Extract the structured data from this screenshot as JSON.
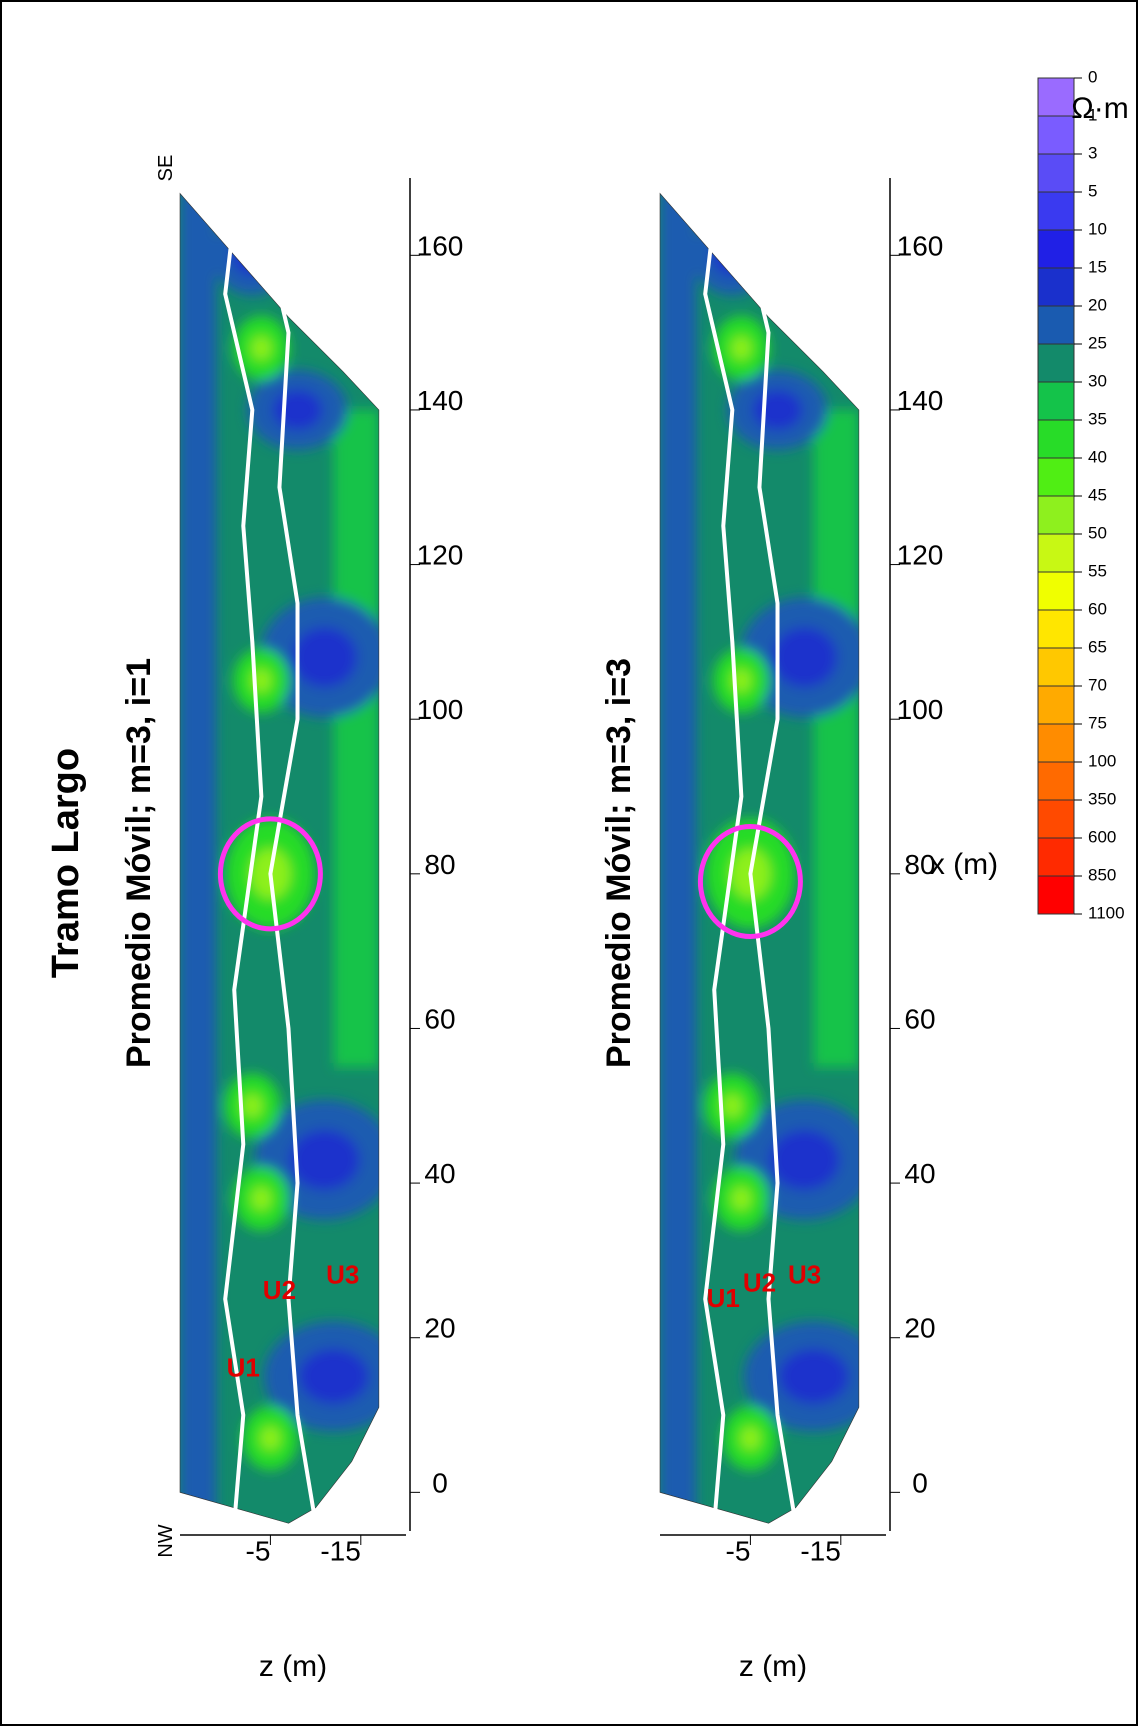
{
  "figure": {
    "title": "Tramo Largo",
    "orientation_left": "NW",
    "orientation_right": "SE"
  },
  "colorbar": {
    "unit": "Ω·m",
    "levels": [
      "0",
      "1",
      "3",
      "5",
      "10",
      "15",
      "20",
      "25",
      "30",
      "35",
      "40",
      "45",
      "50",
      "55",
      "60",
      "65",
      "70",
      "75",
      "100",
      "350",
      "600",
      "850",
      "1100"
    ],
    "colors": [
      "#9a6bff",
      "#7a5cff",
      "#5a4cf6",
      "#3a3af0",
      "#2020e6",
      "#1a30cc",
      "#1a5bb0",
      "#138a6a",
      "#14c34a",
      "#28dc28",
      "#50ee14",
      "#8ef01e",
      "#c8f814",
      "#f0ff00",
      "#ffe600",
      "#ffc800",
      "#ffaa00",
      "#ff8c00",
      "#ff6a00",
      "#ff4a00",
      "#ff2a00",
      "#ff0000"
    ]
  },
  "chart_data": [
    {
      "type": "heatmap",
      "title": "Promedio Móvil; m=3, i=1",
      "xlabel": "x (m)",
      "ylabel": "z (m)",
      "xlim": [
        -5,
        170
      ],
      "ylim": [
        -20,
        5
      ],
      "xticks": [
        "0",
        "20",
        "40",
        "60",
        "80",
        "100",
        "120",
        "140",
        "160"
      ],
      "yticks": [
        "-5",
        "-15"
      ],
      "units": [
        {
          "label": "U1",
          "x": 15,
          "z": -2
        },
        {
          "label": "U2",
          "x": 25,
          "z": -6
        },
        {
          "label": "U3",
          "x": 27,
          "z": -13
        }
      ],
      "anomaly": {
        "center_x": 80,
        "center_z": -5
      }
    },
    {
      "type": "heatmap",
      "title": "Promedio Móvil; m=3, i=3",
      "xlabel": "x (m)",
      "ylabel": "z (m)",
      "xlim": [
        -5,
        170
      ],
      "ylim": [
        -20,
        5
      ],
      "xticks": [
        "0",
        "20",
        "40",
        "60",
        "80",
        "100",
        "120",
        "140",
        "160"
      ],
      "yticks": [
        "-5",
        "-15"
      ],
      "units": [
        {
          "label": "U1",
          "x": 24,
          "z": -2
        },
        {
          "label": "U2",
          "x": 26,
          "z": -6
        },
        {
          "label": "U3",
          "x": 27,
          "z": -11
        }
      ],
      "anomaly": {
        "center_x": 79,
        "center_z": -5
      }
    }
  ]
}
